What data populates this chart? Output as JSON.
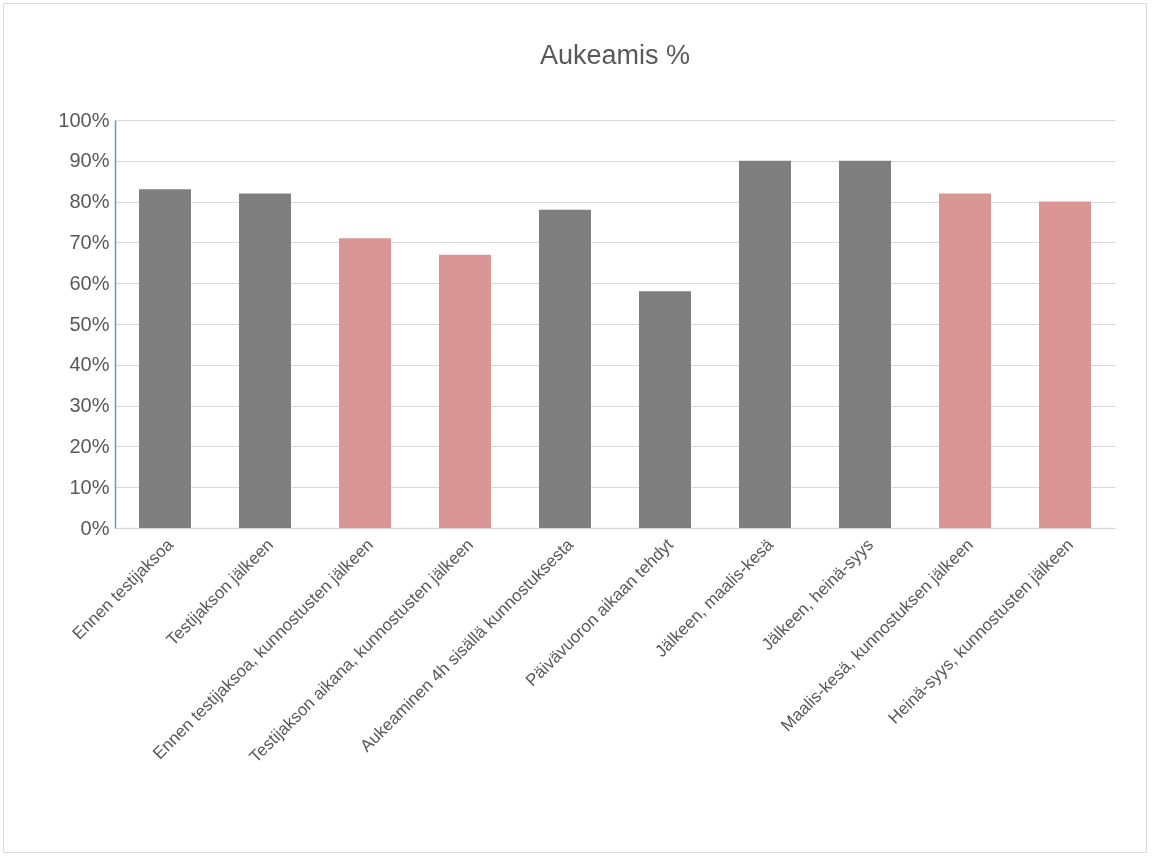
{
  "chart_data": {
    "type": "bar",
    "title": "Aukeamis %",
    "categories": [
      "Ennen testijaksoa",
      "Testijakson jälkeen",
      "Ennen testijaksoa, kunnostusten jälkeen",
      "Testijakson aikana, kunnostusten jälkeen",
      "Aukeaminen 4h sisällä kunnostuksesta",
      "Päivävuoron aikaan tehdyt",
      "Jälkeen, maalis-kesä",
      "Jälkeen, heinä-syys",
      "Maalis-kesä, kunnostuksen jälkeen",
      "Heinä-syys, kunnostusten jälkeen"
    ],
    "values": [
      83,
      82,
      71,
      67,
      78,
      58,
      90,
      90,
      82,
      80
    ],
    "colors": [
      "#7f7f7f",
      "#7f7f7f",
      "#d99694",
      "#d99694",
      "#7f7f7f",
      "#7f7f7f",
      "#7f7f7f",
      "#7f7f7f",
      "#d99694",
      "#d99694"
    ],
    "ylim": [
      0,
      100
    ],
    "yticks": [
      {
        "value": 0,
        "label": "0%"
      },
      {
        "value": 10,
        "label": "10%"
      },
      {
        "value": 20,
        "label": "20%"
      },
      {
        "value": 30,
        "label": "30%"
      },
      {
        "value": 40,
        "label": "40%"
      },
      {
        "value": 50,
        "label": "50%"
      },
      {
        "value": 60,
        "label": "60%"
      },
      {
        "value": 70,
        "label": "70%"
      },
      {
        "value": 80,
        "label": "80%"
      },
      {
        "value": 90,
        "label": "90%"
      },
      {
        "value": 100,
        "label": "100%"
      }
    ],
    "grid": true
  }
}
